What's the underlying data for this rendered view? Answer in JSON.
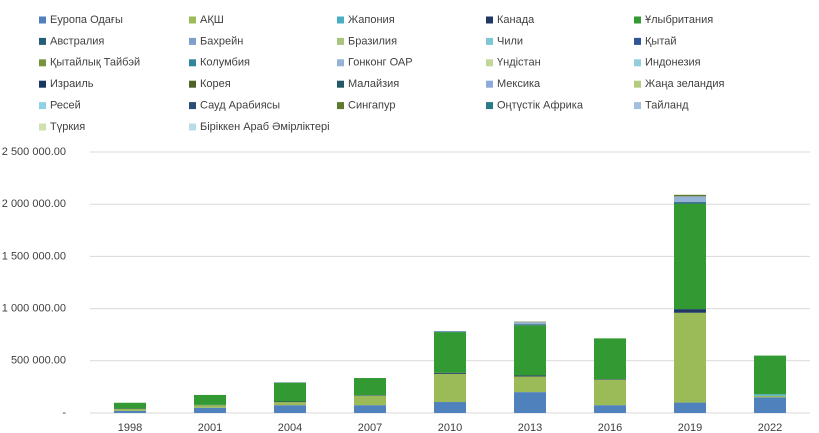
{
  "chart_data": {
    "type": "stacked_bar",
    "categories": [
      "1998",
      "2001",
      "2004",
      "2007",
      "2010",
      "2013",
      "2016",
      "2019",
      "2022"
    ],
    "series": [
      {
        "name": "Еуропа Одағы",
        "color": "#4f81bd",
        "values": [
          20000,
          50000,
          75000,
          75000,
          105000,
          200000,
          75000,
          100000,
          150000
        ]
      },
      {
        "name": "АҚШ",
        "color": "#9bbb59",
        "values": [
          20000,
          25000,
          30000,
          90000,
          270000,
          150000,
          245000,
          860000,
          15000
        ]
      },
      {
        "name": "Жапония",
        "color": "#4bacc6",
        "values": [
          0,
          0,
          0,
          0,
          0,
          0,
          0,
          0,
          15000
        ]
      },
      {
        "name": "Канада",
        "color": "#1f3864",
        "values": [
          3000,
          3000,
          5000,
          5000,
          10000,
          10000,
          5000,
          35000,
          0
        ]
      },
      {
        "name": "Ұлыбритания",
        "color": "#339933",
        "values": [
          55000,
          95000,
          180000,
          165000,
          390000,
          480000,
          390000,
          1010000,
          370000
        ]
      },
      {
        "name": "Австралия",
        "color": "#255e79",
        "values": [
          0,
          0,
          3000,
          0,
          5000,
          10000,
          0,
          15000,
          0
        ]
      },
      {
        "name": "Бахрейн",
        "color": "#7f9fcf",
        "values": [
          0,
          0,
          0,
          0,
          0,
          0,
          0,
          0,
          0
        ]
      },
      {
        "name": "Бразилия",
        "color": "#a9c47f",
        "values": [
          0,
          0,
          0,
          0,
          0,
          0,
          0,
          0,
          0
        ]
      },
      {
        "name": "Чили",
        "color": "#7ec6d6",
        "values": [
          0,
          0,
          0,
          0,
          0,
          0,
          0,
          0,
          0
        ]
      },
      {
        "name": "Қытай",
        "color": "#2f5597",
        "values": [
          0,
          0,
          0,
          0,
          0,
          0,
          0,
          0,
          0
        ]
      },
      {
        "name": "Қытайлық Тайбэй",
        "color": "#77933c",
        "values": [
          0,
          0,
          0,
          0,
          0,
          0,
          0,
          0,
          0
        ]
      },
      {
        "name": "Колумбия",
        "color": "#31859c",
        "values": [
          0,
          0,
          0,
          0,
          0,
          0,
          0,
          0,
          0
        ]
      },
      {
        "name": "Гонконг ОАР",
        "color": "#95b3d7",
        "values": [
          0,
          0,
          0,
          0,
          5000,
          20000,
          0,
          55000,
          0
        ]
      },
      {
        "name": "Үндістан",
        "color": "#c3d69b",
        "values": [
          0,
          0,
          0,
          0,
          0,
          0,
          0,
          0,
          0
        ]
      },
      {
        "name": "Индонезия",
        "color": "#92cddc",
        "values": [
          0,
          0,
          0,
          0,
          0,
          0,
          0,
          0,
          0
        ]
      },
      {
        "name": "Израиль",
        "color": "#17375e",
        "values": [
          0,
          0,
          0,
          0,
          0,
          0,
          0,
          0,
          0
        ]
      },
      {
        "name": "Корея",
        "color": "#4f6228",
        "values": [
          0,
          0,
          0,
          0,
          0,
          0,
          0,
          0,
          0
        ]
      },
      {
        "name": "Малайзия",
        "color": "#215968",
        "values": [
          0,
          0,
          0,
          0,
          0,
          0,
          0,
          0,
          0
        ]
      },
      {
        "name": "Мексика",
        "color": "#8eaadb",
        "values": [
          0,
          0,
          0,
          0,
          0,
          0,
          0,
          0,
          0
        ]
      },
      {
        "name": "Жаңа зеландия",
        "color": "#b3cc82",
        "values": [
          0,
          0,
          0,
          0,
          0,
          0,
          0,
          0,
          0
        ]
      },
      {
        "name": "Ресей",
        "color": "#8dd2e6",
        "values": [
          0,
          0,
          0,
          0,
          0,
          0,
          0,
          0,
          0
        ]
      },
      {
        "name": "Сауд Арабиясы",
        "color": "#2c4d75",
        "values": [
          0,
          0,
          0,
          0,
          0,
          0,
          0,
          0,
          0
        ]
      },
      {
        "name": "Сингапур",
        "color": "#5e7a2f",
        "values": [
          0,
          0,
          0,
          0,
          0,
          5000,
          0,
          15000,
          0
        ]
      },
      {
        "name": "Оңтүстік Африка",
        "color": "#2b7a8a",
        "values": [
          0,
          0,
          0,
          0,
          0,
          0,
          0,
          0,
          0
        ]
      },
      {
        "name": "Тайланд",
        "color": "#a6bfdd",
        "values": [
          0,
          0,
          0,
          0,
          0,
          0,
          0,
          0,
          0
        ]
      },
      {
        "name": "Түркия",
        "color": "#d0e0b0",
        "values": [
          0,
          0,
          0,
          0,
          0,
          0,
          0,
          0,
          0
        ]
      },
      {
        "name": "Біріккен Араб Әмірліктері",
        "color": "#b7dee8",
        "values": [
          0,
          0,
          0,
          0,
          0,
          0,
          0,
          0,
          0
        ]
      }
    ],
    "ylim": [
      0,
      2500000
    ],
    "yticks": [
      {
        "value": 0,
        "label": "-"
      },
      {
        "value": 500000,
        "label": "500 000.00"
      },
      {
        "value": 1000000,
        "label": "1 000 000.00"
      },
      {
        "value": 1500000,
        "label": "1 500 000.00"
      },
      {
        "value": 2000000,
        "label": "2 000 000.00"
      },
      {
        "value": 2500000,
        "label": "2 500 000.00"
      }
    ],
    "grid": true,
    "legend": "top"
  }
}
